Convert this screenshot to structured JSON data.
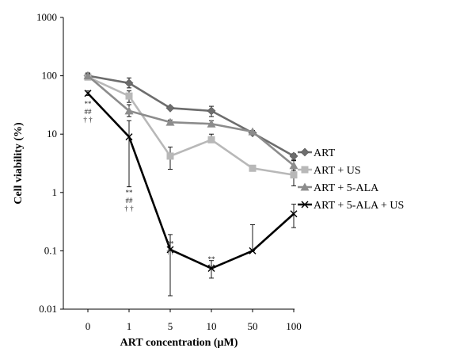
{
  "chart_data": {
    "type": "line",
    "xlabel": "ART concentration (μM)",
    "ylabel": "Cell viability (%)",
    "y_scale": "log",
    "ylim": [
      0.01,
      1000
    ],
    "yticks": [
      "0.01",
      "0.1",
      "1",
      "10",
      "100",
      "1000"
    ],
    "categories": [
      "0",
      "1",
      "5",
      "10",
      "50",
      "100"
    ],
    "legend_position": "right",
    "series": [
      {
        "name": "ART",
        "color": "#6d6d6d",
        "marker": "diamond",
        "values": [
          100,
          75,
          28,
          25,
          10.5,
          4.2
        ],
        "err_high": [
          112,
          92,
          30,
          30,
          11.5,
          4.6
        ],
        "err_low": [
          95,
          62,
          27,
          20,
          9.8,
          3.6
        ]
      },
      {
        "name": "ART + US",
        "color": "#b8b8b8",
        "marker": "square",
        "values": [
          95,
          45,
          4.2,
          8,
          2.6,
          2.0
        ],
        "err_high": [
          100,
          55,
          6,
          10,
          2.6,
          2.6
        ],
        "err_low": [
          90,
          35,
          2.5,
          8,
          2.6,
          1.3
        ]
      },
      {
        "name": "ART + 5-ALA",
        "color": "#8c8c8c",
        "marker": "triangle",
        "values": [
          100,
          25,
          16,
          15,
          11,
          2.9
        ],
        "err_high": [
          108,
          32,
          17.5,
          17,
          11.5,
          3.5
        ],
        "err_low": [
          95,
          20,
          15,
          14,
          10.5,
          2.4
        ]
      },
      {
        "name": "ART + 5-ALA + US",
        "color": "#000000",
        "marker": "x",
        "values": [
          50,
          9,
          0.105,
          0.05,
          0.1,
          0.43
        ],
        "err_high": [
          55,
          17,
          0.19,
          0.068,
          0.28,
          0.63
        ],
        "err_low": [
          46,
          1.25,
          0.017,
          0.034,
          0.1,
          0.25
        ]
      }
    ],
    "annotations": [
      {
        "category": "0",
        "value": 30,
        "lines": [
          "**",
          "##",
          "† †"
        ]
      },
      {
        "category": "1",
        "value": 0.9,
        "lines": [
          "**",
          "##",
          "† †"
        ]
      },
      {
        "category": "5",
        "value": 0.12,
        "lines": [
          "**",
          "††"
        ]
      },
      {
        "category": "10",
        "value": 0.065,
        "lines": [
          "**",
          "††"
        ]
      }
    ]
  }
}
